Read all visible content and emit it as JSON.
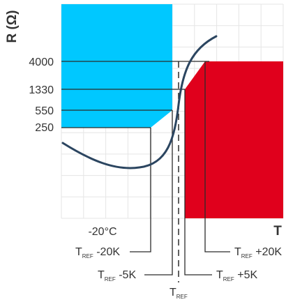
{
  "chart_data": {
    "type": "line",
    "ylabel": "R (Ω)",
    "xlabel": "T",
    "y_ticks": [
      "4000",
      "1330",
      "550",
      "250"
    ],
    "x_tick": "-20°C",
    "markers": [
      {
        "id": "tref-20k",
        "base": "T",
        "sub": "REF",
        "suffix": " -20K"
      },
      {
        "id": "tref-5k-left",
        "base": "T",
        "sub": "REF",
        "suffix": " -5K"
      },
      {
        "id": "tref",
        "base": "T",
        "sub": "REF",
        "suffix": ""
      },
      {
        "id": "tref-5k-right",
        "base": "T",
        "sub": "REF",
        "suffix": " +5K"
      },
      {
        "id": "tref-20k-right",
        "base": "T",
        "sub": "REF",
        "suffix": " +20K"
      }
    ],
    "series": [
      {
        "values_description": "PTC characteristic: dips to a minimum near -20°C, then rises steeply through T_REF"
      }
    ],
    "colors": {
      "curve": "#2b4560",
      "low_region": "#00c8ff",
      "high_region": "#e0001c",
      "grid": "#e5e5e5",
      "guide": "#2b2b2b"
    },
    "grid": true
  }
}
